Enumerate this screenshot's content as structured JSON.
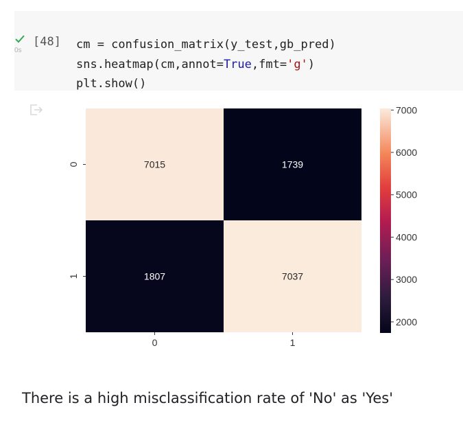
{
  "cell": {
    "execution_count": "[48]",
    "exec_time": "0s",
    "status_icon": "check-icon",
    "code_lines": [
      [
        {
          "t": "cm = confusion_matrix(y_test,gb_pred)",
          "c": ""
        }
      ],
      [
        {
          "t": "sns.heatmap(cm,annot=",
          "c": ""
        },
        {
          "t": "True",
          "c": "kw"
        },
        {
          "t": ",fmt=",
          "c": ""
        },
        {
          "t": "'g'",
          "c": "str"
        },
        {
          "t": ")",
          "c": ""
        }
      ],
      [
        {
          "t": "plt.show()",
          "c": ""
        }
      ]
    ]
  },
  "output": {
    "icon": "output-redirect-icon"
  },
  "chart_data": {
    "type": "heatmap",
    "x_categories": [
      "0",
      "1"
    ],
    "y_categories": [
      "0",
      "1"
    ],
    "values": [
      [
        7015,
        1739
      ],
      [
        1807,
        7037
      ]
    ],
    "annotations": [
      [
        "7015",
        "1739"
      ],
      [
        "1807",
        "7037"
      ]
    ],
    "colormap": "rocket",
    "vmin": 1739,
    "vmax": 7037,
    "colorbar_ticks": [
      7000,
      6000,
      5000,
      4000,
      3000,
      2000
    ],
    "colorbar_tick_labels": [
      "7000",
      "6000",
      "5000",
      "4000",
      "3000",
      "2000"
    ]
  },
  "markdown": {
    "text": "There is a high misclassification rate of 'No' as 'Yes'"
  }
}
